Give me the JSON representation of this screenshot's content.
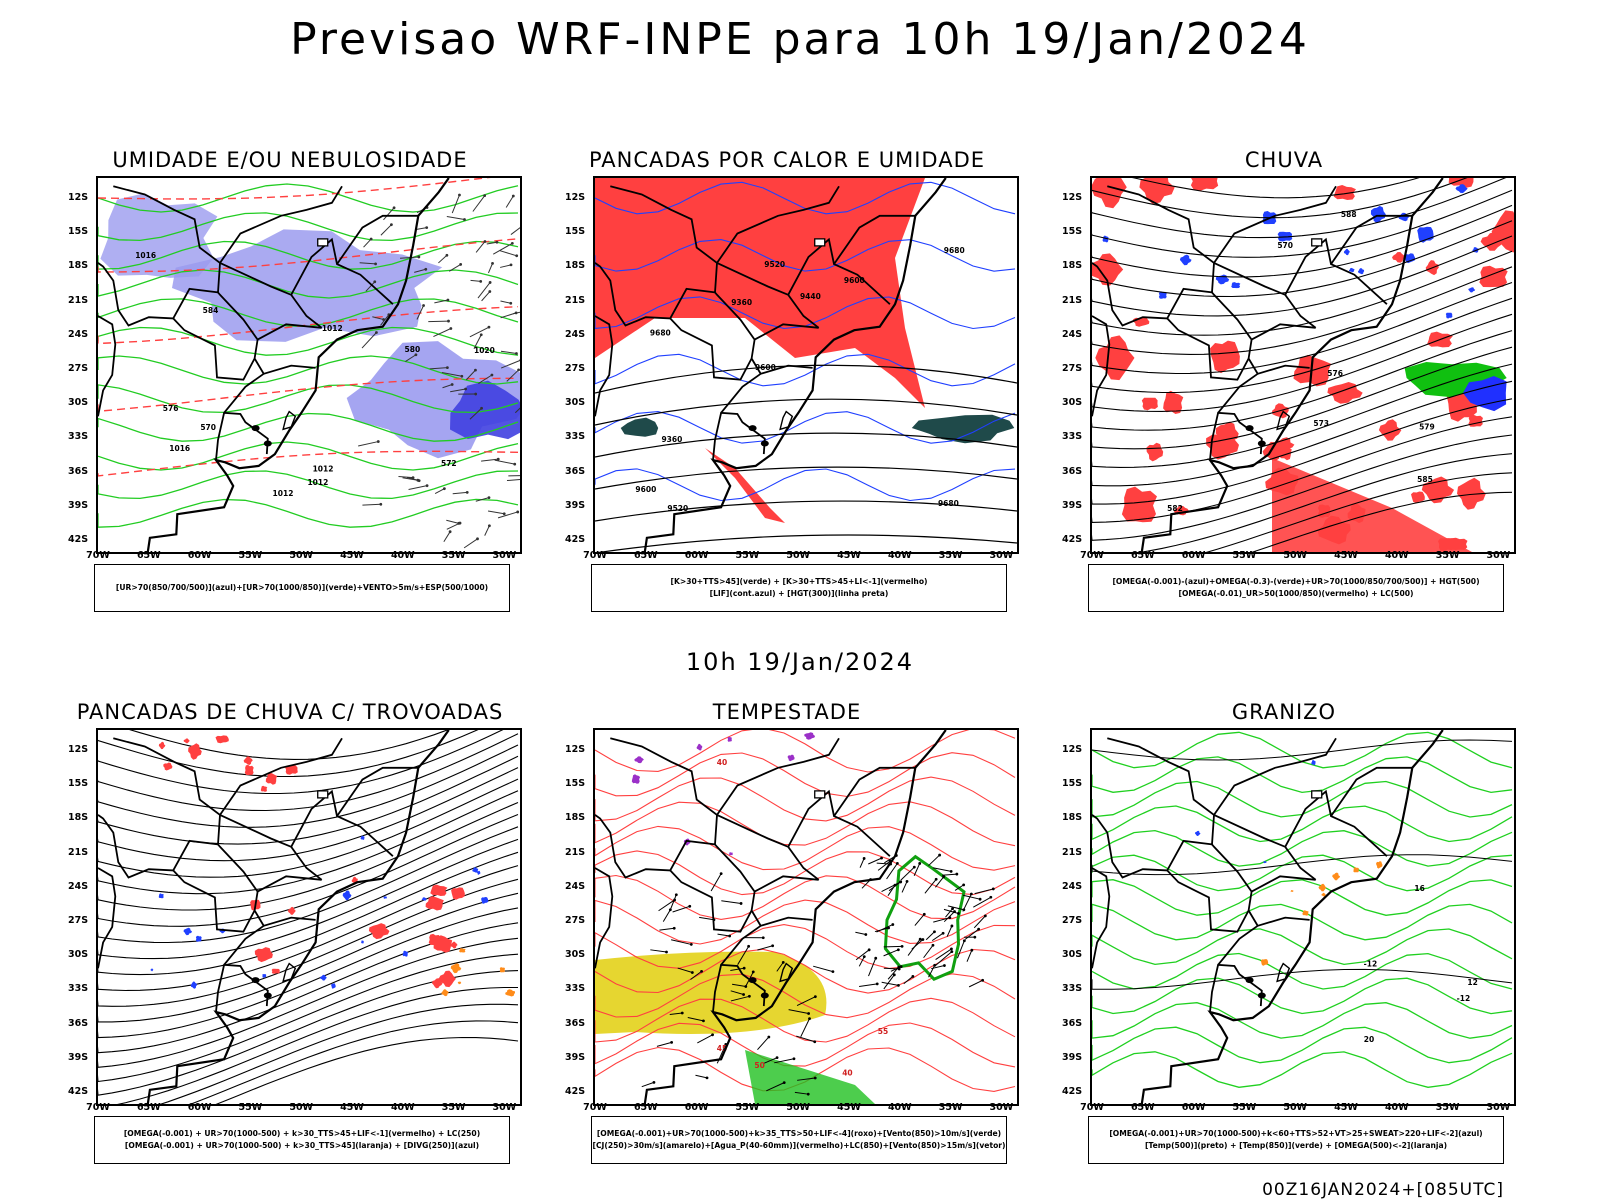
{
  "page": {
    "title": "Previsao WRF-INPE  para 10h 19/Jan/2024",
    "mid_date": "10h 19/Jan/2024",
    "footer_stamp": "00Z16JAN2024+[085UTC]"
  },
  "axes": {
    "lat_labels": [
      "12S",
      "15S",
      "18S",
      "21S",
      "24S",
      "27S",
      "30S",
      "33S",
      "36S",
      "39S",
      "42S"
    ],
    "lon_labels": [
      "70W",
      "65W",
      "60W",
      "55W",
      "50W",
      "45W",
      "40W",
      "35W",
      "30W"
    ]
  },
  "colors": {
    "humidity_blue": "#9b9bef",
    "humidity_green": "#22cc22",
    "red": "#ff4040",
    "dark_teal": "#1f4a4a",
    "yellow": "#e6d630",
    "purple": "#9b30c8",
    "orange": "#ff8c1a",
    "blue": "#2040ff"
  },
  "panels": [
    {
      "title": "UMIDADE E/OU NEBULOSIDADE",
      "legend": [
        "[UR>70(850/700/500)](azul)+[UR>70(1000/850)](verde)+VENTO>5m/s+ESP(500/1000)"
      ],
      "contour_labels": [
        "1012",
        "1012",
        "1012",
        "1016",
        "1020",
        "1016",
        "1012",
        "576",
        "580",
        "584",
        "570",
        "572"
      ]
    },
    {
      "title": "PANCADAS POR CALOR E UMIDADE",
      "legend": [
        "[K>30+TTS>45](verde) + [K>30+TTS>45+LI<-1](vermelho)",
        "[LIF](cont.azul) + [HGT(300)](linha preta)"
      ],
      "contour_labels": [
        "9680",
        "9680",
        "9680",
        "9600",
        "9600",
        "9520",
        "9520",
        "9440",
        "9360",
        "9360",
        "9600"
      ]
    },
    {
      "title": "CHUVA",
      "legend": [
        "[OMEGA(-0.001)-(azul)+OMEGA(-0.3)-(verde)+UR>70(1000/850/700/500)] + HGT(500)",
        "[OMEGA(-0.01)_UR>50(1000/850)(vermelho) + LC(500)"
      ],
      "contour_labels": [
        "582",
        "579",
        "576",
        "573",
        "570",
        "588",
        "585"
      ]
    },
    {
      "title": "PANCADAS DE CHUVA C/ TROVOADAS",
      "legend": [
        "[OMEGA(-0.001) + UR>70(1000-500) + k>30_TTS>45+LIF<-1](vermelho) + LC(250)",
        "[OMEGA(-0.001) + UR>70(1000-500) + k>30_TTS>45](laranja) + [DIVG(250)](azul)"
      ],
      "contour_labels": []
    },
    {
      "title": "TEMPESTADE",
      "legend": [
        "[OMEGA(-0.001)+UR>70(1000-500)+k>35_TTS>50+LIF<-4](roxo)+[Vento(850)>10m/s](verde)",
        "[CJ(250)>30m/s](amarelo)+[Agua_P(40-60mm)](vermelho)+LC(850)+[Vento(850)>15m/s](vetor)"
      ],
      "contour_labels": [
        "50",
        "40",
        "45",
        "55",
        "40"
      ]
    },
    {
      "title": "GRANIZO",
      "legend": [
        "[OMEGA(-0.001)+UR>70(1000-500)+k<60+TTS>52+VT>25+SWEAT>220+LIF<-2](azul)",
        "[Temp(500)](preto) + [Temp(850)](verde) + [OMEGA(500)<-2](laranja)"
      ],
      "contour_labels": [
        "-12",
        "12",
        "16",
        "-12",
        "20"
      ]
    }
  ]
}
